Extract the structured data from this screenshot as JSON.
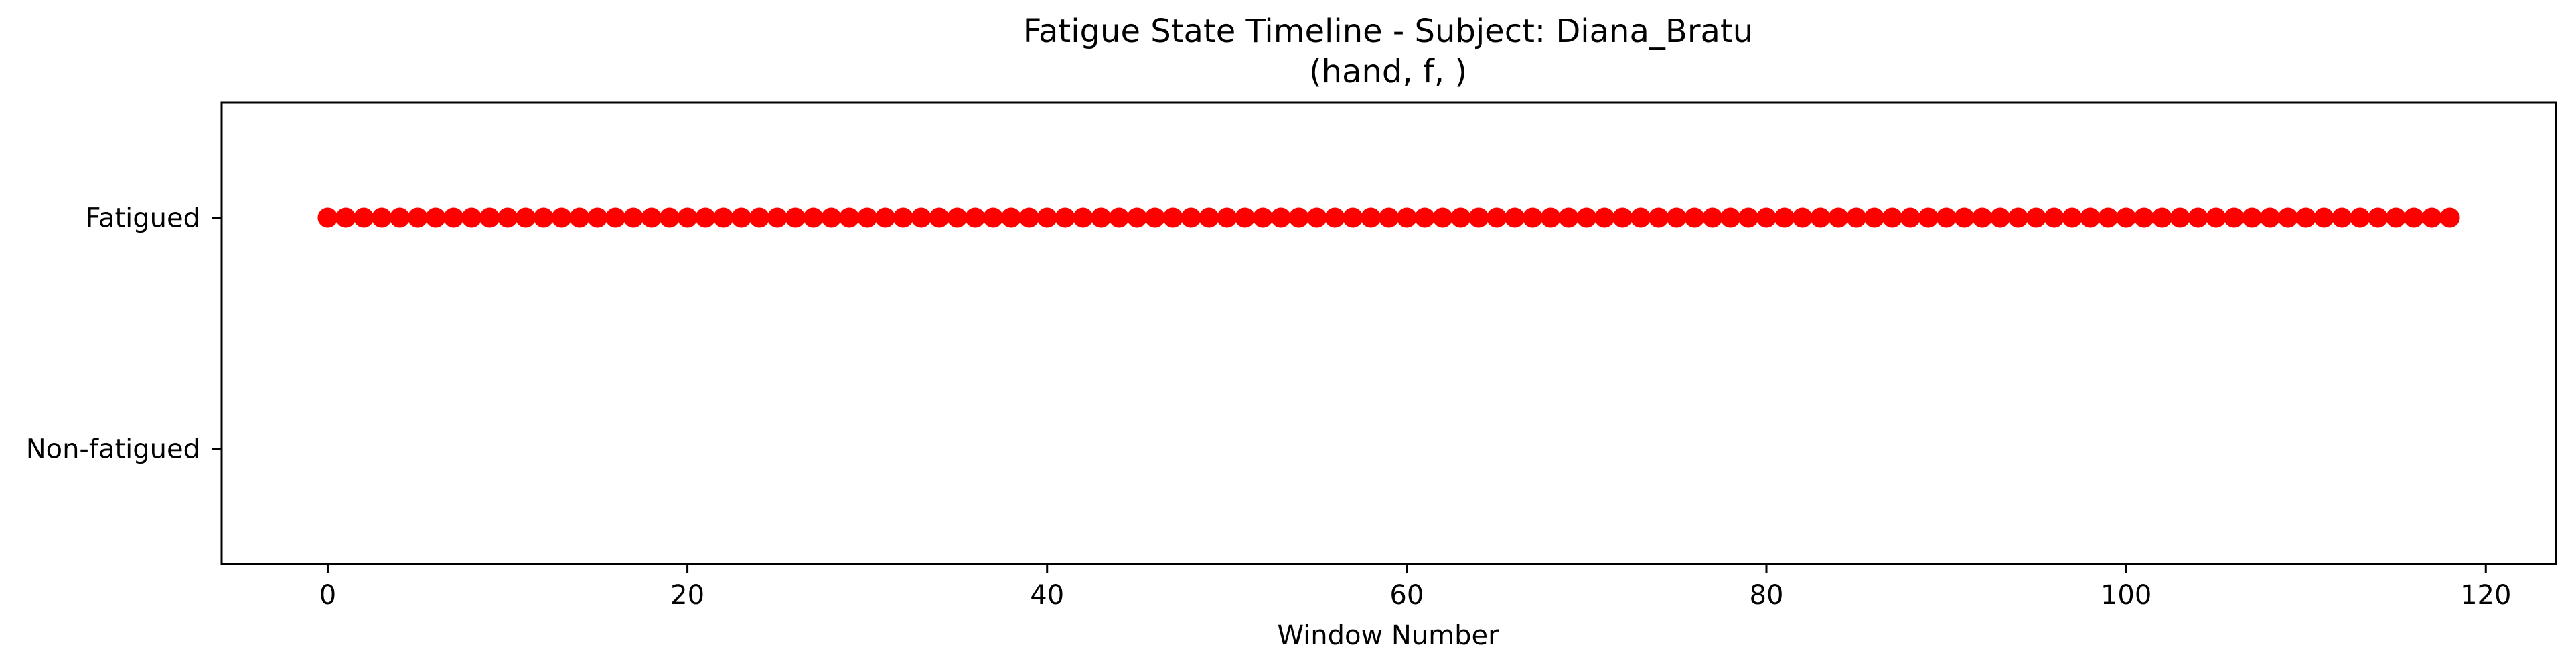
{
  "chart_data": {
    "type": "scatter",
    "title": "Fatigue State Timeline - Subject: Diana_Bratu",
    "subtitle": "(hand, f, )",
    "xlabel": "Window Number",
    "ylabel": "",
    "xlim": [
      -5.9,
      123.9
    ],
    "ylim": [
      -0.5,
      1.5
    ],
    "x_ticks": [
      0,
      20,
      40,
      60,
      80,
      100,
      120
    ],
    "y_ticks": [
      {
        "value": 0,
        "label": "Non-fatigued"
      },
      {
        "value": 1,
        "label": "Fatigued"
      }
    ],
    "grid": false,
    "legend": false,
    "marker_color": "#ff0000",
    "series": [
      {
        "x": [
          0,
          1,
          2,
          3,
          4,
          5,
          6,
          7,
          8,
          9,
          10,
          11,
          12,
          13,
          14,
          15,
          16,
          17,
          18,
          19,
          20,
          21,
          22,
          23,
          24,
          25,
          26,
          27,
          28,
          29,
          30,
          31,
          32,
          33,
          34,
          35,
          36,
          37,
          38,
          39,
          40,
          41,
          42,
          43,
          44,
          45,
          46,
          47,
          48,
          49,
          50,
          51,
          52,
          53,
          54,
          55,
          56,
          57,
          58,
          59,
          60,
          61,
          62,
          63,
          64,
          65,
          66,
          67,
          68,
          69,
          70,
          71,
          72,
          73,
          74,
          75,
          76,
          77,
          78,
          79,
          80,
          81,
          82,
          83,
          84,
          85,
          86,
          87,
          88,
          89,
          90,
          91,
          92,
          93,
          94,
          95,
          96,
          97,
          98,
          99,
          100,
          101,
          102,
          103,
          104,
          105,
          106,
          107,
          108,
          109,
          110,
          111,
          112,
          113,
          114,
          115,
          116,
          117,
          118
        ],
        "y_value": 1
      }
    ]
  }
}
